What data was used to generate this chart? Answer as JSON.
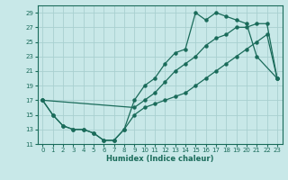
{
  "xlabel": "Humidex (Indice chaleur)",
  "bg_color": "#c8e8e8",
  "grid_color": "#a8d0d0",
  "line_color": "#1a6b5a",
  "xlim": [
    -0.5,
    23.5
  ],
  "ylim": [
    11,
    30
  ],
  "yticks": [
    11,
    13,
    15,
    17,
    19,
    21,
    23,
    25,
    27,
    29
  ],
  "xticks": [
    0,
    1,
    2,
    3,
    4,
    5,
    6,
    7,
    8,
    9,
    10,
    11,
    12,
    13,
    14,
    15,
    16,
    17,
    18,
    19,
    20,
    21,
    22,
    23
  ],
  "line1_x": [
    0,
    1,
    2,
    3,
    4,
    5,
    6,
    7,
    8,
    9,
    10,
    11,
    12,
    13,
    14,
    15,
    16,
    17,
    18,
    19,
    20,
    21,
    23
  ],
  "line1_y": [
    17,
    15,
    13.5,
    13,
    13,
    12.5,
    11.5,
    11.5,
    13,
    17,
    19,
    20,
    22,
    23.5,
    24,
    29,
    28,
    29,
    28.5,
    28,
    27.5,
    23,
    20
  ],
  "line2_x": [
    0,
    9,
    10,
    11,
    12,
    13,
    14,
    15,
    16,
    17,
    18,
    19,
    20,
    21,
    22,
    23
  ],
  "line2_y": [
    17,
    16,
    17,
    18,
    19.5,
    21,
    22,
    23,
    24.5,
    25.5,
    26,
    27,
    27,
    27.5,
    27.5,
    20
  ],
  "line3_x": [
    0,
    1,
    2,
    3,
    4,
    5,
    6,
    7,
    8,
    9,
    10,
    11,
    12,
    13,
    14,
    15,
    16,
    17,
    18,
    19,
    20,
    21,
    22,
    23
  ],
  "line3_y": [
    17,
    15,
    13.5,
    13,
    13,
    12.5,
    11.5,
    11.5,
    13,
    15,
    16,
    16.5,
    17,
    17.5,
    18,
    19,
    20,
    21,
    22,
    23,
    24,
    25,
    26,
    20
  ]
}
